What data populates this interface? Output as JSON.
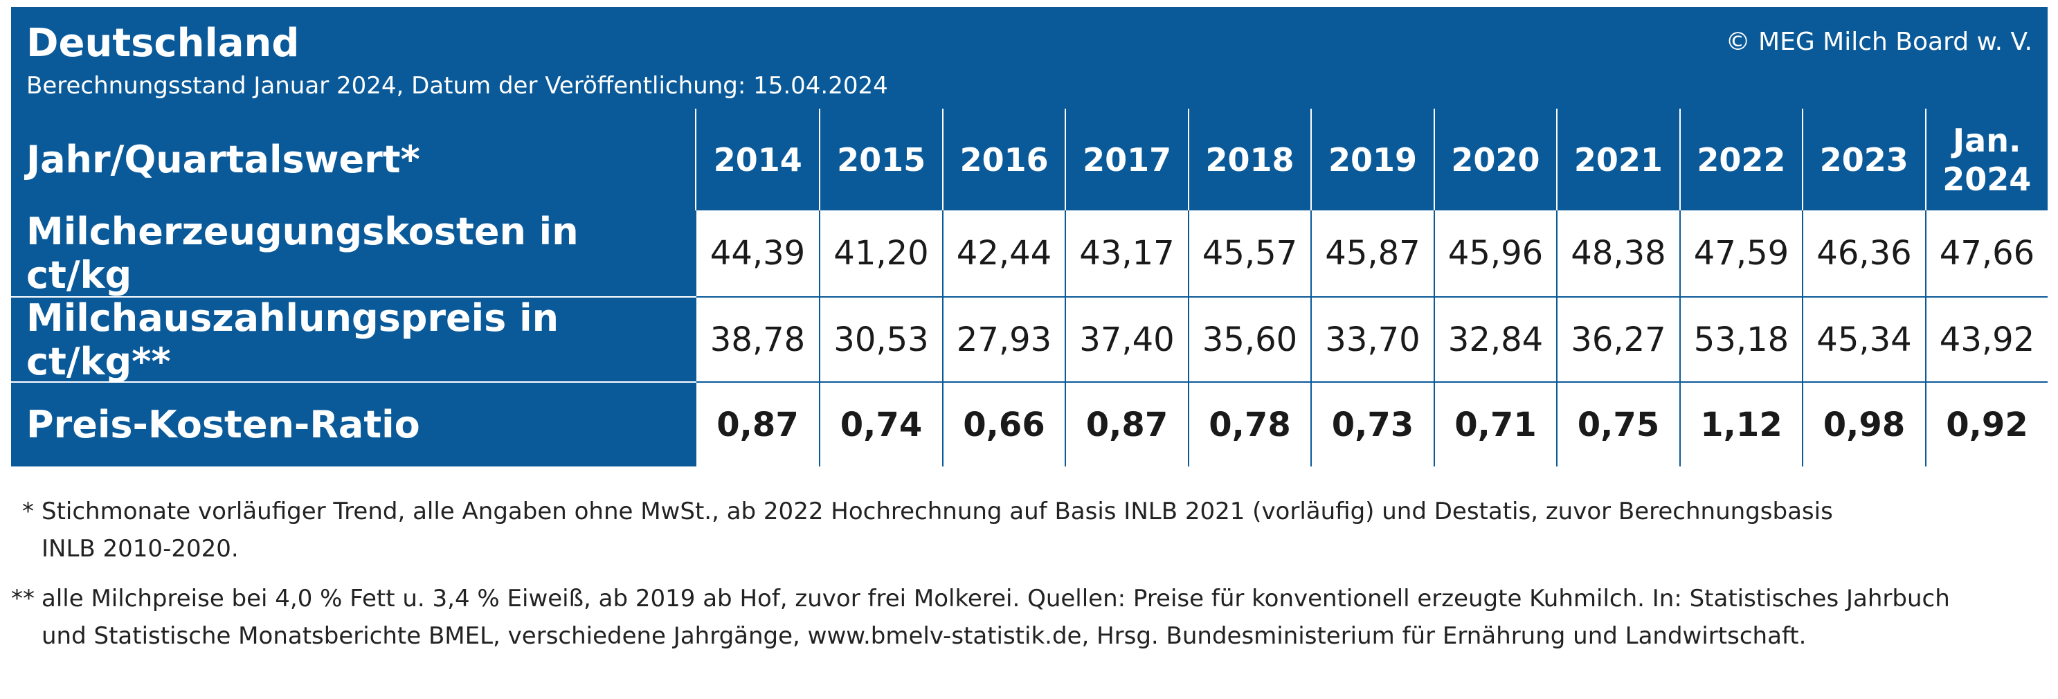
{
  "header": {
    "title": "Deutschland",
    "copyright": "© MEG Milch Board w. V.",
    "subtitle": "Berechnungsstand Januar 2024, Datum der Veröffentlichung: 15.04.2024"
  },
  "table": {
    "corner_label": "Jahr/Quartalswert*",
    "columns": [
      "2014",
      "2015",
      "2016",
      "2017",
      "2018",
      "2019",
      "2020",
      "2021",
      "2022",
      "2023",
      "Jan. 2024"
    ],
    "rows": [
      {
        "label": "Milcherzeugungskosten in ct/kg",
        "values": [
          "44,39",
          "41,20",
          "42,44",
          "43,17",
          "45,57",
          "45,87",
          "45,96",
          "48,38",
          "47,59",
          "46,36",
          "47,66"
        ],
        "bold": false
      },
      {
        "label": "Milchauszahlungspreis in ct/kg**",
        "values": [
          "38,78",
          "30,53",
          "27,93",
          "37,40",
          "35,60",
          "33,70",
          "32,84",
          "36,27",
          "53,18",
          "45,34",
          "43,92"
        ],
        "bold": false
      },
      {
        "label": "Preis-Kosten-Ratio",
        "values": [
          "0,87",
          "0,74",
          "0,66",
          "0,87",
          "0,78",
          "0,73",
          "0,71",
          "0,75",
          "1,12",
          "0,98",
          "0,92"
        ],
        "bold": true
      }
    ]
  },
  "footnotes": [
    {
      "mark": "*",
      "lines": [
        "Stichmonate vorläufiger Trend, alle Angaben ohne MwSt., ab 2022 Hochrechnung auf Basis INLB 2021 (vorläufig) und Destatis, zuvor Berechnungsbasis",
        "INLB 2010-2020."
      ]
    },
    {
      "mark": "**",
      "lines": [
        "alle Milchpreise bei 4,0 % Fett u. 3,4 % Eiweiß, ab 2019 ab Hof, zuvor frei Molkerei. Quellen: Preise für konventionell erzeugte Kuhmilch. In: Statistisches Jahrbuch",
        "und Statistische Monatsberichte BMEL, verschiedene Jahrgänge, www.bmelv-statistik.de, Hrsg. Bundesministerium für Ernährung und Landwirtschaft."
      ]
    }
  ],
  "colors": {
    "panel_blue": "#0a5a9a",
    "cell_background": "#ffffff",
    "text_dark": "#1a1a1a"
  }
}
